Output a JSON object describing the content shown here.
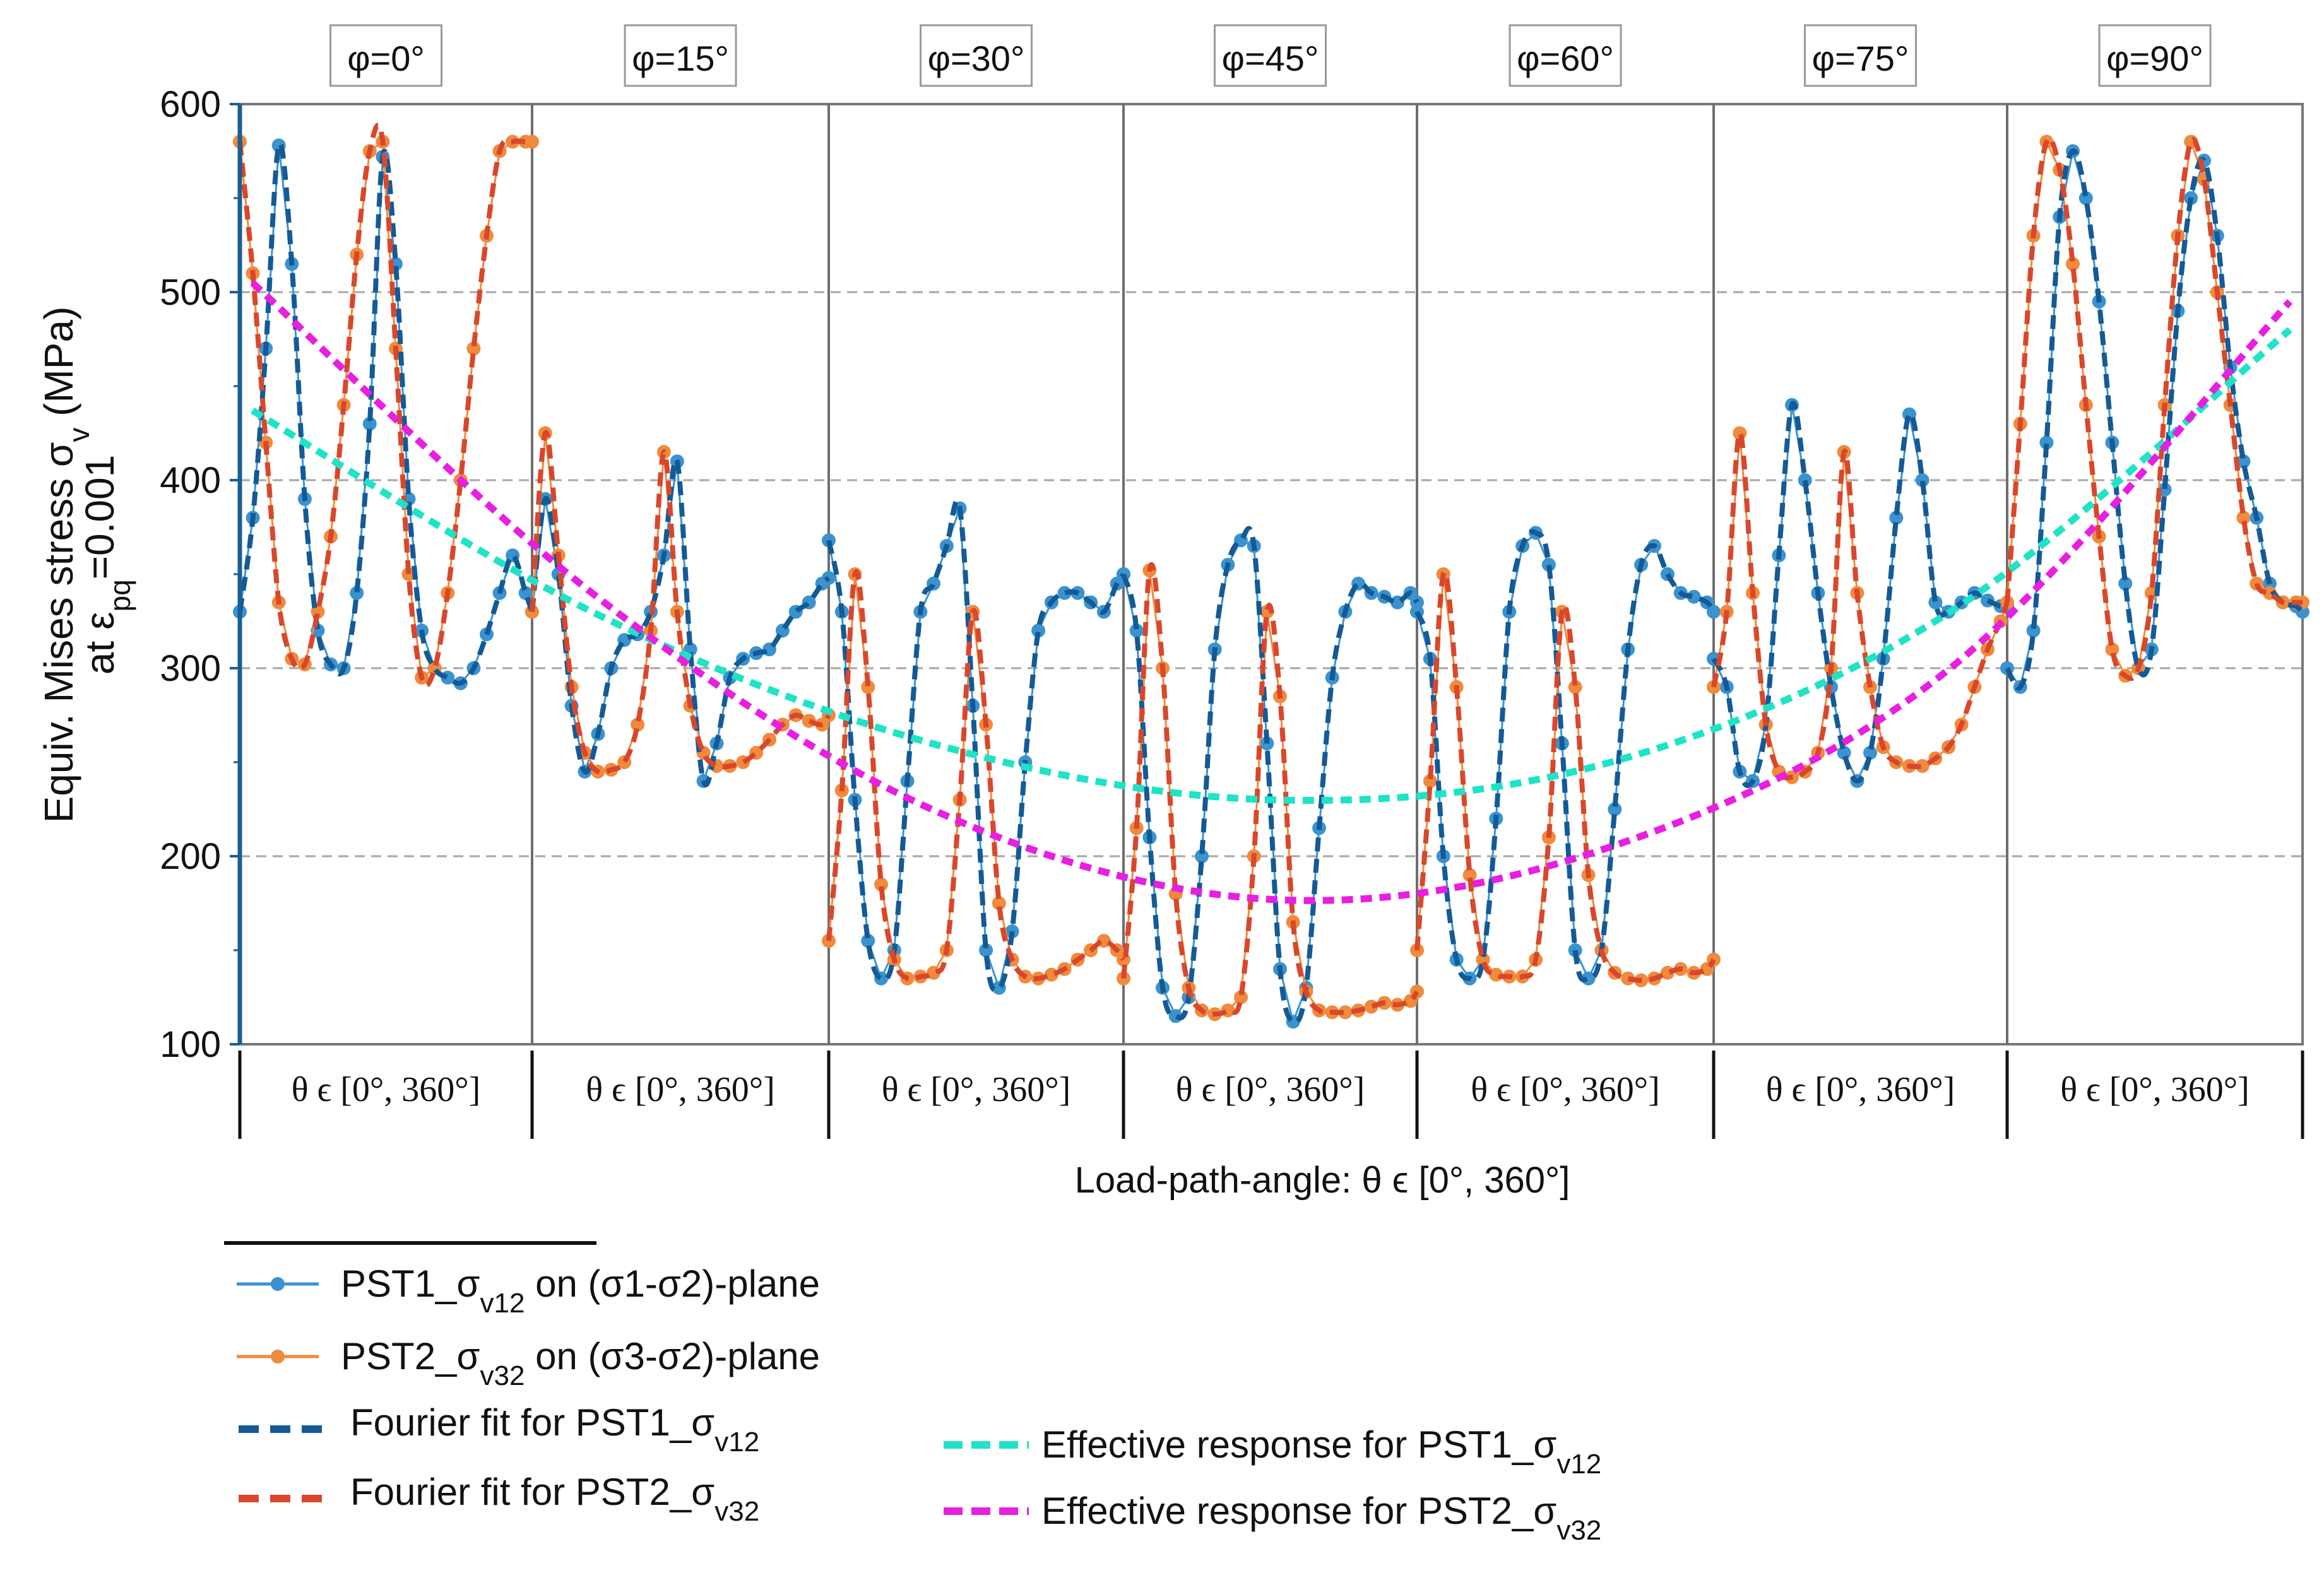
{
  "chart_data": {
    "type": "line",
    "title": "",
    "ylabel": {
      "line1_main": "Equiv. Mises stress σ",
      "line1_sub": "v",
      "line1_end": " (MPa)",
      "line2_main": "at ε",
      "line2_sub": "pq",
      "line2_end": "=0.001"
    },
    "xlabel": "Load-path-angle: θ ϵ [0°, 360°]",
    "ylim": [
      100,
      600
    ],
    "yticks": [
      "100",
      "200",
      "300",
      "400",
      "500",
      "600"
    ],
    "y_gridlines": [
      200,
      300,
      400,
      500
    ],
    "panels": [
      "φ=0°",
      "φ=15°",
      "φ=30°",
      "φ=45°",
      "φ=60°",
      "φ=75°",
      "φ=90°"
    ],
    "panel_range_label": "θ ϵ [0°, 360°]",
    "panel_theta_range": [
      0,
      360
    ],
    "series": [
      {
        "name": "PST1_σv12 on (σ1-σ2)-plane",
        "kind": "measured",
        "color": "#3a93cf",
        "panels": [
          {
            "theta": [
              0,
              16,
              32,
              48,
              64,
              80,
              96,
              112,
              128,
              144,
              160,
              176,
              192,
              208,
              224,
              240,
              256,
              272,
              288,
              304,
              320,
              336,
              352,
              360
            ],
            "values": [
              330,
              380,
              470,
              578,
              515,
              390,
              320,
              302,
              300,
              340,
              430,
              572,
              515,
              390,
              320,
              300,
              295,
              292,
              300,
              318,
              340,
              360,
              340,
              330
            ]
          },
          {
            "theta": [
              0,
              16,
              32,
              48,
              64,
              80,
              96,
              112,
              128,
              144,
              160,
              176,
              192,
              208,
              224,
              240,
              256,
              272,
              288,
              304,
              320,
              336,
              352,
              360
            ],
            "values": [
              330,
              390,
              350,
              280,
              245,
              265,
              300,
              315,
              318,
              330,
              360,
              410,
              310,
              240,
              260,
              295,
              305,
              308,
              310,
              320,
              330,
              335,
              345,
              348
            ]
          },
          {
            "theta": [
              0,
              16,
              32,
              48,
              64,
              80,
              96,
              112,
              128,
              144,
              160,
              176,
              192,
              208,
              224,
              240,
              256,
              272,
              288,
              304,
              320,
              336,
              352,
              360
            ],
            "values": [
              368,
              330,
              230,
              155,
              135,
              150,
              240,
              330,
              345,
              365,
              385,
              280,
              150,
              130,
              160,
              250,
              320,
              335,
              340,
              340,
              335,
              330,
              345,
              350
            ]
          },
          {
            "theta": [
              0,
              16,
              32,
              48,
              64,
              80,
              96,
              112,
              128,
              144,
              160,
              176,
              192,
              208,
              224,
              240,
              256,
              272,
              288,
              304,
              320,
              336,
              352,
              360
            ],
            "values": [
              350,
              320,
              210,
              130,
              115,
              125,
              200,
              310,
              355,
              368,
              365,
              260,
              140,
              112,
              130,
              215,
              295,
              330,
              345,
              340,
              338,
              335,
              340,
              335
            ]
          },
          {
            "theta": [
              0,
              16,
              32,
              48,
              64,
              80,
              96,
              112,
              128,
              144,
              160,
              176,
              192,
              208,
              224,
              240,
              256,
              272,
              288,
              304,
              320,
              336,
              352,
              360
            ],
            "values": [
              330,
              305,
              200,
              145,
              135,
              145,
              220,
              330,
              365,
              372,
              355,
              260,
              150,
              135,
              150,
              225,
              310,
              355,
              365,
              350,
              340,
              338,
              335,
              330
            ]
          },
          {
            "theta": [
              0,
              16,
              32,
              48,
              64,
              80,
              96,
              112,
              128,
              144,
              160,
              176,
              192,
              208,
              224,
              240,
              256,
              272,
              288,
              304,
              320,
              336,
              352,
              360
            ],
            "values": [
              305,
              290,
              245,
              240,
              270,
              360,
              440,
              400,
              340,
              290,
              255,
              240,
              255,
              305,
              380,
              435,
              400,
              335,
              330,
              335,
              340,
              336,
              333,
              333
            ]
          },
          {
            "theta": [
              0,
              16,
              32,
              48,
              64,
              80,
              96,
              112,
              128,
              144,
              160,
              176,
              192,
              208,
              224,
              240,
              256,
              272,
              288,
              304,
              320,
              336,
              352,
              360
            ],
            "values": [
              300,
              290,
              320,
              420,
              540,
              575,
              550,
              495,
              420,
              345,
              300,
              310,
              395,
              490,
              550,
              570,
              530,
              460,
              410,
              380,
              345,
              335,
              333,
              330
            ]
          }
        ]
      },
      {
        "name": "PST2_σv32 on (σ3-σ2)-plane",
        "kind": "measured",
        "color": "#f08a3c",
        "panels": [
          {
            "theta": [
              0,
              16,
              32,
              48,
              64,
              80,
              96,
              112,
              128,
              144,
              160,
              176,
              192,
              208,
              224,
              240,
              256,
              272,
              288,
              304,
              320,
              336,
              352,
              360
            ],
            "values": [
              580,
              510,
              420,
              335,
              305,
              302,
              330,
              370,
              440,
              520,
              575,
              580,
              470,
              350,
              295,
              300,
              340,
              400,
              470,
              530,
              575,
              580,
              580,
              580
            ]
          },
          {
            "theta": [
              0,
              16,
              32,
              48,
              64,
              80,
              96,
              112,
              128,
              144,
              160,
              176,
              192,
              208,
              224,
              240,
              256,
              272,
              288,
              304,
              320,
              336,
              352,
              360
            ],
            "values": [
              330,
              425,
              360,
              290,
              255,
              245,
              246,
              250,
              270,
              320,
              415,
              330,
              280,
              255,
              248,
              248,
              250,
              255,
              262,
              270,
              275,
              272,
              270,
              275
            ]
          },
          {
            "theta": [
              0,
              16,
              32,
              48,
              64,
              80,
              96,
              112,
              128,
              144,
              160,
              176,
              192,
              208,
              224,
              240,
              256,
              272,
              288,
              304,
              320,
              336,
              352,
              360
            ],
            "values": [
              155,
              235,
              350,
              290,
              185,
              145,
              135,
              136,
              138,
              150,
              230,
              330,
              270,
              175,
              145,
              136,
              135,
              137,
              140,
              145,
              150,
              155,
              150,
              145
            ]
          },
          {
            "theta": [
              0,
              16,
              32,
              48,
              64,
              80,
              96,
              112,
              128,
              144,
              160,
              176,
              192,
              208,
              224,
              240,
              256,
              272,
              288,
              304,
              320,
              336,
              352,
              360
            ],
            "values": [
              135,
              215,
              352,
              300,
              180,
              130,
              118,
              116,
              118,
              125,
              200,
              330,
              285,
              165,
              128,
              118,
              117,
              117,
              118,
              120,
              122,
              121,
              123,
              128
            ]
          },
          {
            "theta": [
              0,
              16,
              32,
              48,
              64,
              80,
              96,
              112,
              128,
              144,
              160,
              176,
              192,
              208,
              224,
              240,
              256,
              272,
              288,
              304,
              320,
              336,
              352,
              360
            ],
            "values": [
              150,
              240,
              350,
              290,
              190,
              145,
              137,
              136,
              136,
              145,
              210,
              330,
              290,
              190,
              150,
              138,
              135,
              134,
              135,
              138,
              140,
              138,
              140,
              145
            ]
          },
          {
            "theta": [
              0,
              16,
              32,
              48,
              64,
              80,
              96,
              112,
              128,
              144,
              160,
              176,
              192,
              208,
              224,
              240,
              256,
              272,
              288,
              304,
              320,
              336,
              352,
              360
            ],
            "values": [
              290,
              330,
              425,
              340,
              270,
              245,
              242,
              245,
              255,
              300,
              415,
              340,
              290,
              258,
              250,
              248,
              248,
              252,
              258,
              270,
              290,
              310,
              325,
              335
            ]
          },
          {
            "theta": [
              0,
              16,
              32,
              48,
              64,
              80,
              96,
              112,
              128,
              144,
              160,
              176,
              192,
              208,
              224,
              240,
              256,
              272,
              288,
              304,
              320,
              336,
              352,
              360
            ],
            "values": [
              335,
              430,
              530,
              580,
              565,
              515,
              440,
              370,
              310,
              296,
              300,
              340,
              440,
              530,
              580,
              560,
              500,
              440,
              380,
              345,
              340,
              335,
              335,
              335
            ]
          }
        ]
      },
      {
        "name": "Fourier fit for PST1_σv12",
        "kind": "fit",
        "fit_of": "PST1_σv12 on (σ1-σ2)-plane",
        "color": "#135a96"
      },
      {
        "name": "Fourier fit for PST2_σv32",
        "kind": "fit",
        "fit_of": "PST2_σv32 on (σ3-σ2)-plane",
        "color": "#d9472b"
      },
      {
        "name": "Effective response for PST1_σv12",
        "kind": "effective",
        "color": "#1fe3c6",
        "phi_deg": [
          0,
          15,
          30,
          45,
          60,
          75,
          90
        ],
        "values": [
          437,
          330,
          260,
          230,
          250,
          330,
          480
        ]
      },
      {
        "name": "Effective response for PST2_σv32",
        "kind": "effective",
        "color": "#e81ee0",
        "phi_deg": [
          0,
          15,
          30,
          45,
          60,
          75,
          90
        ],
        "values": [
          505,
          340,
          225,
          177,
          205,
          300,
          495
        ]
      }
    ],
    "legend": {
      "placement": "bottom-left",
      "items": [
        {
          "id": "pst1",
          "pre": "PST1_σ",
          "sub": "v12",
          "post": " on (σ1-σ2)-plane"
        },
        {
          "id": "pst2",
          "pre": "PST2_σ",
          "sub": "v32",
          "post": " on (σ3-σ2)-plane"
        },
        {
          "id": "fit1",
          "pre": "Fourier fit for PST1_σ",
          "sub": "v12",
          "post": ""
        },
        {
          "id": "fit2",
          "pre": "Fourier fit for PST2_σ",
          "sub": "v32",
          "post": ""
        },
        {
          "id": "eff1",
          "pre": "Effective response for PST1_σ",
          "sub": "v12",
          "post": ""
        },
        {
          "id": "eff2",
          "pre": "Effective response for PST2_σ",
          "sub": "v32",
          "post": ""
        }
      ]
    }
  }
}
